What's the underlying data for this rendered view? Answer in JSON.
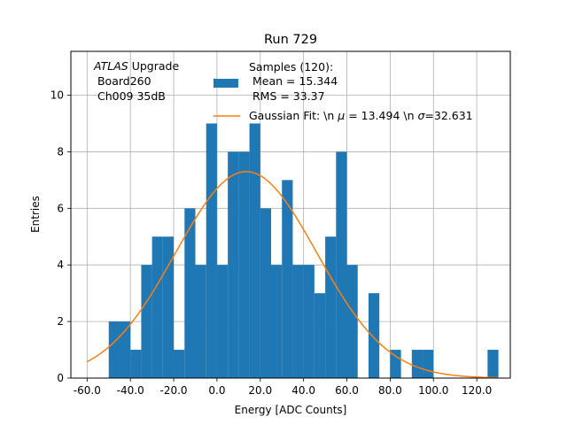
{
  "chart_data": {
    "type": "bar",
    "title": "Run 729",
    "xlabel": "Energy [ADC Counts]",
    "ylabel": "Entries",
    "xlim": [
      -67.5,
      135.5
    ],
    "ylim": [
      0,
      11.55
    ],
    "xticks": [
      -60,
      -40,
      -20,
      0,
      20,
      40,
      60,
      80,
      100,
      120
    ],
    "xtick_labels": [
      "-60.0",
      "-40.0",
      "-20.0",
      "0.0",
      "20.0",
      "40.0",
      "60.0",
      "80.0",
      "100.0",
      "120.0"
    ],
    "yticks": [
      0,
      2,
      4,
      6,
      8,
      10
    ],
    "ytick_labels": [
      "0",
      "2",
      "4",
      "6",
      "8",
      "10"
    ],
    "grid": true,
    "bin_width": 5,
    "bin_edges": [
      -50,
      -45,
      -40,
      -35,
      -30,
      -25,
      -20,
      -15,
      -10,
      -5,
      0,
      5,
      10,
      15,
      20,
      25,
      30,
      35,
      40,
      45,
      50,
      55,
      60,
      65,
      70,
      75,
      80,
      85,
      90,
      95,
      100,
      105,
      110,
      115,
      120,
      125,
      130
    ],
    "counts": [
      2,
      2,
      1,
      4,
      5,
      5,
      1,
      6,
      4,
      9,
      4,
      8,
      8,
      9,
      6,
      4,
      7,
      4,
      4,
      3,
      5,
      8,
      4,
      0,
      3,
      0,
      1,
      0,
      1,
      1,
      0,
      0,
      0,
      0,
      0,
      1
    ],
    "bar_color": "#1f77b4",
    "fit": {
      "type": "gaussian",
      "mu": 13.494,
      "sigma": 32.631,
      "amplitude": 7.3,
      "x_range": [
        -60,
        130
      ],
      "color": "#ff7f0e"
    },
    "annotation": {
      "italic": "ATLAS",
      "rest": " Upgrade",
      "line2": " Board260",
      "line3": " Ch009 35dB"
    },
    "legend": {
      "position": "top-right",
      "hist_lines": [
        "Samples (120):",
        " Mean = 15.344",
        " RMS = 33.37"
      ],
      "fit_prefix": "Gaussian Fit: \\n ",
      "fit_mu_symbol": "μ",
      "fit_mid": " = 13.494 \\n ",
      "fit_sigma_symbol": "σ",
      "fit_suffix": "=32.631"
    }
  }
}
